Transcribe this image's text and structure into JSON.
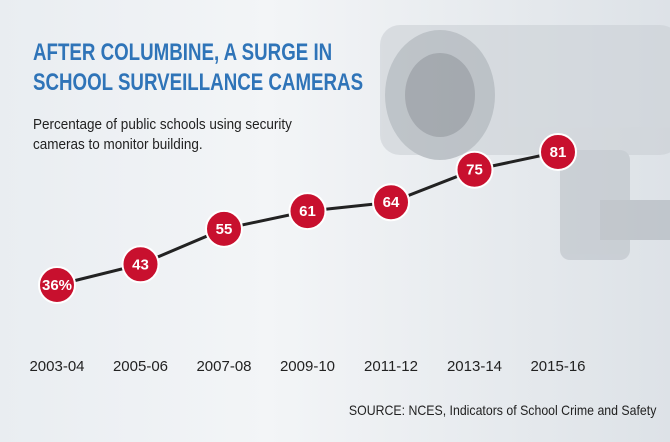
{
  "chart_data": {
    "type": "line",
    "title": "AFTER COLUMBINE, A SURGE IN\nSCHOOL SURVEILLANCE CAMERAS",
    "subtitle": "Percentage of public schools using security\ncameras to monitor building.",
    "source": "SOURCE: NCES, Indicators of School Crime and Safety",
    "categories": [
      "2003-04",
      "2005-06",
      "2007-08",
      "2009-10",
      "2011-12",
      "2013-14",
      "2015-16"
    ],
    "values": [
      36,
      43,
      55,
      61,
      64,
      75,
      81
    ],
    "value_labels": [
      "36%",
      "43",
      "55",
      "61",
      "64",
      "75",
      "81"
    ],
    "line_color": "#222222",
    "marker_color": "#c8102e"
  }
}
